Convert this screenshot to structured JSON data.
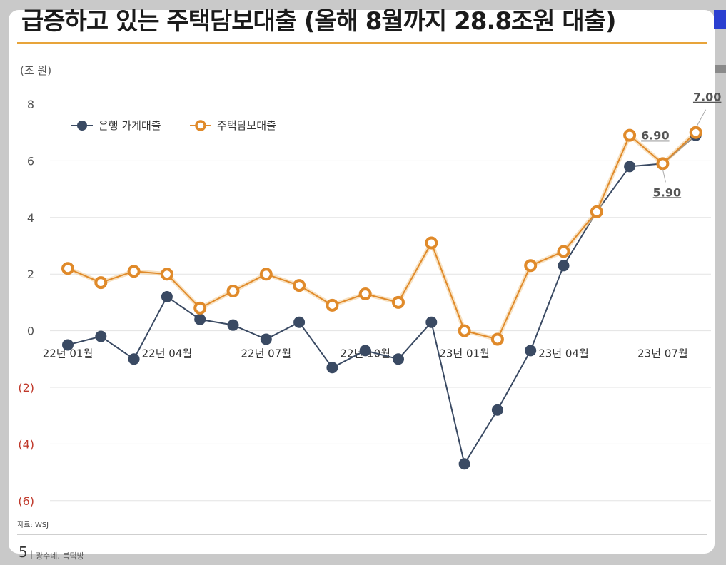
{
  "slide": {
    "title": "급증하고 있는 주택담보대출 (올해 8월까지 28.8조원 대출)",
    "source": "자료: WSJ",
    "page_number": "5",
    "page_separator": "|",
    "footer_text": "광수네, 복덕방",
    "accent_color": "#e8a43a",
    "tab_color": "#2a3fd0"
  },
  "chart_data": {
    "type": "line",
    "unit_label": "(조 원)",
    "ylim": [
      -6,
      8
    ],
    "yticks": [
      {
        "value": 8,
        "label": "8",
        "negative": false
      },
      {
        "value": 6,
        "label": "6",
        "negative": false
      },
      {
        "value": 4,
        "label": "4",
        "negative": false
      },
      {
        "value": 2,
        "label": "2",
        "negative": false
      },
      {
        "value": 0,
        "label": "0",
        "negative": false
      },
      {
        "value": -2,
        "label": "(2)",
        "negative": true
      },
      {
        "value": -4,
        "label": "(4)",
        "negative": true
      },
      {
        "value": -6,
        "label": "(6)",
        "negative": true
      }
    ],
    "x_tick_labels": [
      {
        "index": 0,
        "label": "22년 01월"
      },
      {
        "index": 3,
        "label": "22년 04월"
      },
      {
        "index": 6,
        "label": "22년 07월"
      },
      {
        "index": 9,
        "label": "22년 10월"
      },
      {
        "index": 12,
        "label": "23년 01월"
      },
      {
        "index": 15,
        "label": "23년 04월"
      },
      {
        "index": 18,
        "label": "23년 07월"
      }
    ],
    "grid": true,
    "legend_position": "top-left",
    "series": [
      {
        "name": "은행 가계대출",
        "color": "#3a4a63",
        "marker": "filled-circle",
        "values": [
          -0.5,
          -0.2,
          -1.0,
          1.2,
          0.4,
          0.2,
          -0.3,
          0.3,
          -1.3,
          -0.7,
          -1.0,
          0.3,
          -4.7,
          -2.8,
          -0.7,
          2.3,
          4.2,
          5.8,
          5.9,
          6.9
        ]
      },
      {
        "name": "주택담보대출",
        "color": "#e08a2a",
        "marker": "ring",
        "values": [
          2.2,
          1.7,
          2.1,
          2.0,
          0.8,
          1.4,
          2.0,
          1.6,
          0.9,
          1.3,
          1.0,
          3.1,
          0.0,
          -0.3,
          2.3,
          2.8,
          4.2,
          6.9,
          5.9,
          7.0
        ]
      }
    ],
    "annotations": [
      {
        "text": "7.00",
        "series": 1,
        "index": 19
      },
      {
        "text": "6.90",
        "series": 1,
        "index": 17
      },
      {
        "text": "5.90",
        "series": 1,
        "index": 18
      }
    ]
  }
}
